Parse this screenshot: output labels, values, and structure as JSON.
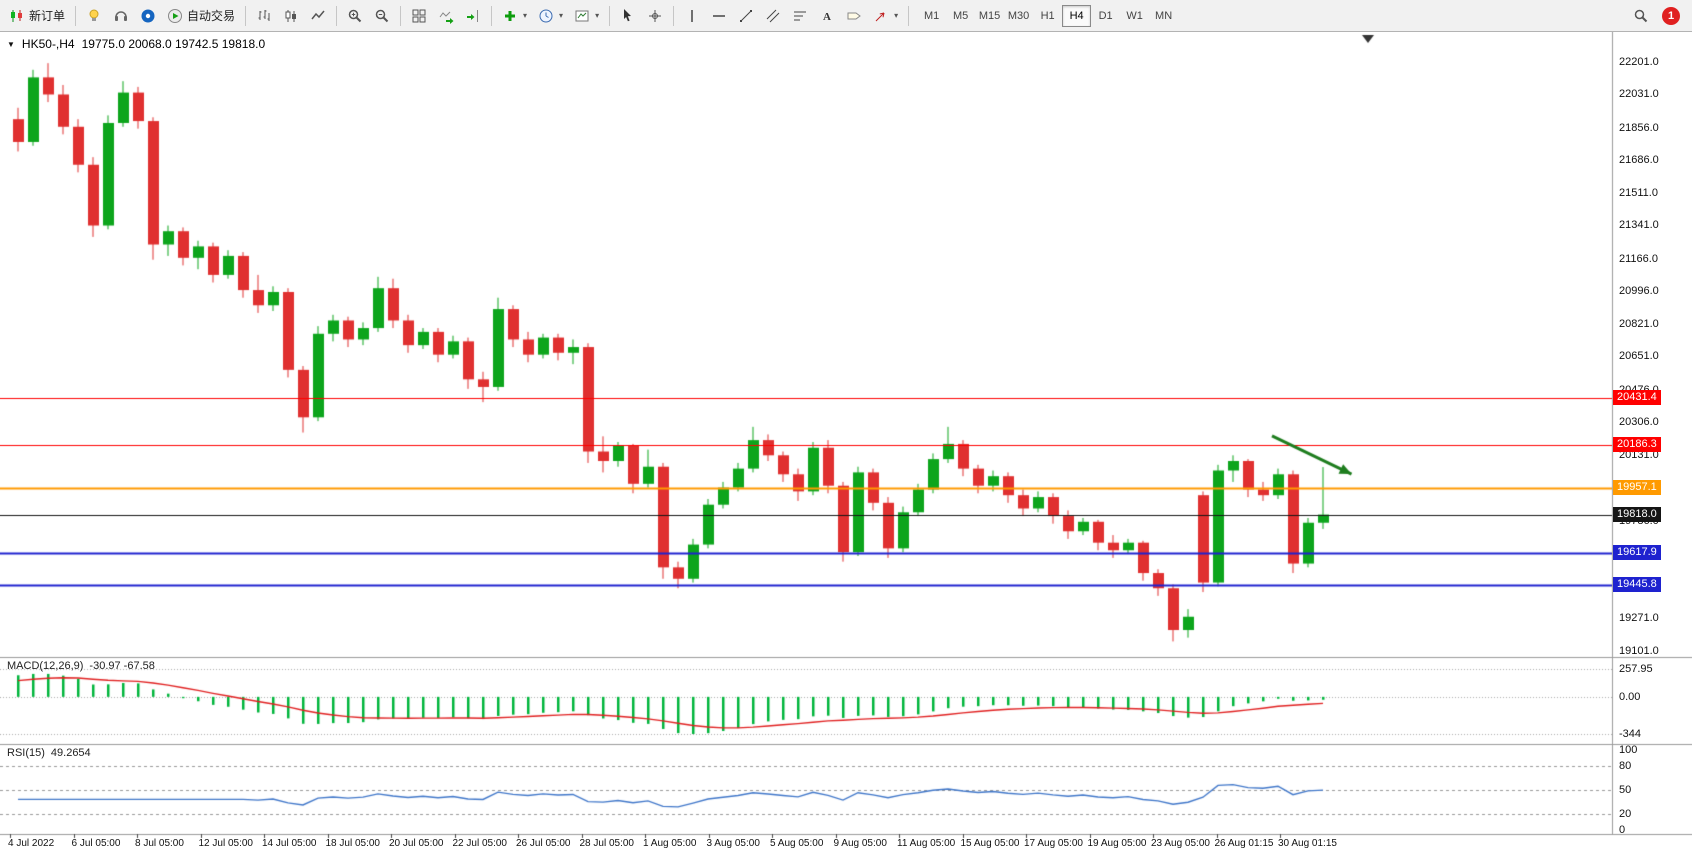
{
  "toolbar": {
    "items": [
      {
        "name": "new-order-button",
        "icon": "new-order-candles-icon",
        "label": "新订单"
      },
      {
        "sep": true
      },
      {
        "name": "ideas-button",
        "icon": "bulb-icon"
      },
      {
        "name": "support-button",
        "icon": "headset-icon"
      },
      {
        "name": "community-button",
        "icon": "community-icon"
      },
      {
        "name": "autotrading-button",
        "icon": "autotrading-icon",
        "label": "自动交易"
      },
      {
        "sep": true
      },
      {
        "name": "bar-chart-button",
        "icon": "bars-icon"
      },
      {
        "name": "candle-chart-button",
        "icon": "candlestick-icon"
      },
      {
        "name": "line-chart-button",
        "icon": "line-chart-icon"
      },
      {
        "sep": true
      },
      {
        "name": "zoom-in-button",
        "icon": "zoom-in-icon"
      },
      {
        "name": "zoom-out-button",
        "icon": "zoom-out-icon"
      },
      {
        "sep": true
      },
      {
        "name": "tile-windows-button",
        "icon": "tile-windows-icon"
      },
      {
        "name": "auto-scroll-button",
        "icon": "auto-scroll-icon"
      },
      {
        "name": "chart-shift-button",
        "icon": "chart-shift-icon"
      },
      {
        "sep": true
      },
      {
        "name": "indicators-button",
        "icon": "indicators-plus-icon",
        "caret": true
      },
      {
        "name": "periods-button",
        "icon": "clock-icon",
        "caret": true
      },
      {
        "name": "templates-button",
        "icon": "template-chart-icon",
        "caret": true
      },
      {
        "sep": true
      },
      {
        "name": "cursor-button",
        "icon": "cursor-icon"
      },
      {
        "name": "crosshair-button",
        "icon": "crosshair-icon"
      },
      {
        "sep": true
      },
      {
        "name": "vertical-line-button",
        "icon": "vertical-line-icon"
      },
      {
        "name": "horizontal-line-button",
        "icon": "horizontal-line-icon"
      },
      {
        "name": "trendline-button",
        "icon": "trendline-icon"
      },
      {
        "name": "channel-button",
        "icon": "channel-icon"
      },
      {
        "name": "fibonacci-button",
        "icon": "fibonacci-icon"
      },
      {
        "name": "text-button",
        "icon": "text-icon"
      },
      {
        "name": "label-button",
        "icon": "label-icon"
      },
      {
        "name": "arrows-button",
        "icon": "arrow-tool-icon",
        "caret": true
      },
      {
        "sep": true
      }
    ],
    "timeframes": [
      "M1",
      "M5",
      "M15",
      "M30",
      "H1",
      "H4",
      "D1",
      "W1",
      "MN"
    ],
    "active_timeframe": "H4",
    "notification_count": "1"
  },
  "chart_header": {
    "collapse_icon": "▼",
    "symbol_period": "HK50-,H4",
    "ohlc": "19775.0 20068.0 19742.5 19818.0"
  },
  "colors": {
    "up": "#0da51c",
    "down": "#e03030",
    "macd_bar": "#00b53c",
    "macd_signal": "#e02020",
    "rsi_line": "#3f76c9",
    "pane_border": "#9a9a9a",
    "arrow": "#1e7d1e"
  },
  "chart_data": [
    {
      "type": "candlestick",
      "symbol": "HK50-",
      "timeframe": "H4",
      "ylim": [
        19068,
        22359
      ],
      "price_ticks": [
        "22201.0",
        "22031.0",
        "21856.0",
        "21686.0",
        "21511.0",
        "21341.0",
        "21166.0",
        "20996.0",
        "20821.0",
        "20651.0",
        "20476.0",
        "20306.0",
        "20131.0",
        "19961.0",
        "19786.0",
        "19611.0",
        "19441.0",
        "19271.0",
        "19101.0"
      ],
      "levels": [
        {
          "label": "20431.4",
          "value": 20431.4,
          "color": "#ff0000",
          "width": 1
        },
        {
          "label": "20186.3",
          "value": 20186.3,
          "color": "#ff0000",
          "width": 1
        },
        {
          "label": "19957.1",
          "value": 19957.1,
          "color": "#ff9a00",
          "width": 2
        },
        {
          "label": "19818.0",
          "value": 19818.0,
          "color": "#151515",
          "width": 1
        },
        {
          "label": "19617.9",
          "value": 19617.9,
          "color": "#1e22cf",
          "width": 2
        },
        {
          "label": "19445.8",
          "value": 19445.8,
          "color": "#1e22cf",
          "width": 2
        }
      ],
      "time_labels": [
        "4 Jul 2022",
        "6 Jul 05:00",
        "8 Jul 05:00",
        "12 Jul 05:00",
        "14 Jul 05:00",
        "18 Jul 05:00",
        "20 Jul 05:00",
        "22 Jul 05:00",
        "26 Jul 05:00",
        "28 Jul 05:00",
        "1 Aug 05:00",
        "3 Aug 05:00",
        "5 Aug 05:00",
        "9 Aug 05:00",
        "11 Aug 05:00",
        "15 Aug 05:00",
        "17 Aug 05:00",
        "19 Aug 05:00",
        "23 Aug 05:00",
        "26 Aug 01:15",
        "30 Aug 01:15"
      ],
      "annotations": [
        {
          "type": "arrow",
          "color": "#1e7d1e",
          "from": {
            "bar": 83.6,
            "price": 20232
          },
          "to": {
            "bar": 88.9,
            "price": 20031
          }
        }
      ],
      "ohlc": [
        [
          21900,
          21960,
          21730,
          21780
        ],
        [
          21780,
          22160,
          21760,
          22120
        ],
        [
          22120,
          22195,
          21990,
          22030
        ],
        [
          22030,
          22080,
          21820,
          21860
        ],
        [
          21860,
          21900,
          21620,
          21660
        ],
        [
          21660,
          21700,
          21280,
          21340
        ],
        [
          21340,
          21920,
          21320,
          21880
        ],
        [
          21880,
          22100,
          21860,
          22040
        ],
        [
          22040,
          22070,
          21850,
          21890
        ],
        [
          21890,
          21910,
          21160,
          21240
        ],
        [
          21240,
          21340,
          21180,
          21310
        ],
        [
          21310,
          21330,
          21130,
          21170
        ],
        [
          21170,
          21260,
          21110,
          21230
        ],
        [
          21230,
          21250,
          21040,
          21080
        ],
        [
          21080,
          21210,
          21060,
          21180
        ],
        [
          21180,
          21200,
          20960,
          21000
        ],
        [
          21000,
          21080,
          20880,
          20920
        ],
        [
          20920,
          21020,
          20890,
          20990
        ],
        [
          20990,
          21010,
          20540,
          20580
        ],
        [
          20580,
          20600,
          20250,
          20330
        ],
        [
          20330,
          20810,
          20310,
          20770
        ],
        [
          20770,
          20870,
          20730,
          20840
        ],
        [
          20840,
          20860,
          20700,
          20740
        ],
        [
          20740,
          20830,
          20710,
          20800
        ],
        [
          20800,
          21070,
          20780,
          21010
        ],
        [
          21010,
          21060,
          20800,
          20840
        ],
        [
          20840,
          20870,
          20670,
          20710
        ],
        [
          20710,
          20800,
          20690,
          20780
        ],
        [
          20780,
          20800,
          20620,
          20660
        ],
        [
          20660,
          20760,
          20640,
          20730
        ],
        [
          20730,
          20750,
          20480,
          20530
        ],
        [
          20530,
          20570,
          20410,
          20490
        ],
        [
          20490,
          20960,
          20470,
          20900
        ],
        [
          20900,
          20920,
          20700,
          20740
        ],
        [
          20740,
          20780,
          20620,
          20660
        ],
        [
          20660,
          20770,
          20640,
          20750
        ],
        [
          20750,
          20770,
          20630,
          20670
        ],
        [
          20670,
          20740,
          20610,
          20700
        ],
        [
          20700,
          20720,
          20090,
          20150
        ],
        [
          20150,
          20230,
          20040,
          20100
        ],
        [
          20100,
          20200,
          20070,
          20180
        ],
        [
          20180,
          20190,
          19930,
          19980
        ],
        [
          19980,
          20160,
          19960,
          20070
        ],
        [
          20070,
          20090,
          19480,
          19540
        ],
        [
          19540,
          19570,
          19430,
          19480
        ],
        [
          19480,
          19690,
          19460,
          19660
        ],
        [
          19660,
          19900,
          19640,
          19870
        ],
        [
          19870,
          19990,
          19850,
          19960
        ],
        [
          19960,
          20090,
          19940,
          20060
        ],
        [
          20060,
          20280,
          20040,
          20210
        ],
        [
          20210,
          20240,
          20100,
          20130
        ],
        [
          20130,
          20150,
          19990,
          20030
        ],
        [
          20030,
          20060,
          19890,
          19940
        ],
        [
          19940,
          20200,
          19920,
          20170
        ],
        [
          20170,
          20210,
          19930,
          19970
        ],
        [
          19970,
          19990,
          19570,
          19620
        ],
        [
          19620,
          20070,
          19600,
          20040
        ],
        [
          20040,
          20060,
          19840,
          19880
        ],
        [
          19880,
          19910,
          19590,
          19640
        ],
        [
          19640,
          19860,
          19620,
          19830
        ],
        [
          19830,
          19980,
          19810,
          19950
        ],
        [
          19950,
          20140,
          19930,
          20110
        ],
        [
          20110,
          20280,
          20090,
          20190
        ],
        [
          20190,
          20210,
          20020,
          20060
        ],
        [
          20060,
          20080,
          19930,
          19970
        ],
        [
          19970,
          20050,
          19940,
          20020
        ],
        [
          20020,
          20040,
          19880,
          19920
        ],
        [
          19920,
          19950,
          19810,
          19850
        ],
        [
          19850,
          19940,
          19830,
          19910
        ],
        [
          19910,
          19930,
          19770,
          19810
        ],
        [
          19810,
          19840,
          19690,
          19730
        ],
        [
          19730,
          19800,
          19710,
          19780
        ],
        [
          19780,
          19790,
          19630,
          19670
        ],
        [
          19670,
          19710,
          19590,
          19630
        ],
        [
          19630,
          19690,
          19610,
          19670
        ],
        [
          19670,
          19680,
          19470,
          19510
        ],
        [
          19510,
          19530,
          19390,
          19430
        ],
        [
          19430,
          19450,
          19150,
          19210
        ],
        [
          19210,
          19320,
          19170,
          19280
        ],
        [
          19920,
          19940,
          19410,
          19460
        ],
        [
          19460,
          20080,
          19440,
          20050
        ],
        [
          20050,
          20130,
          19990,
          20100
        ],
        [
          20100,
          20110,
          19910,
          19950
        ],
        [
          19950,
          19990,
          19890,
          19920
        ],
        [
          19920,
          20060,
          19900,
          20030
        ],
        [
          20030,
          20050,
          19510,
          19560
        ],
        [
          19560,
          19800,
          19540,
          19775
        ],
        [
          19775,
          20068,
          19742.5,
          19818
        ]
      ]
    },
    {
      "type": "bar",
      "name": "MACD(12,26,9)",
      "display_values": "-30.97 -67.58",
      "params": [
        12,
        26,
        9
      ],
      "ylim": [
        -344,
        257.95
      ],
      "scale_labels": [
        "257.95",
        "0.00",
        "-344"
      ]
    },
    {
      "type": "line",
      "name": "RSI(15)",
      "display_values": "49.2654",
      "period": 15,
      "ylim": [
        0,
        100
      ],
      "levels": [
        80,
        50,
        20
      ],
      "scale_labels": [
        "100",
        "80",
        "50",
        "20",
        "0"
      ]
    }
  ]
}
